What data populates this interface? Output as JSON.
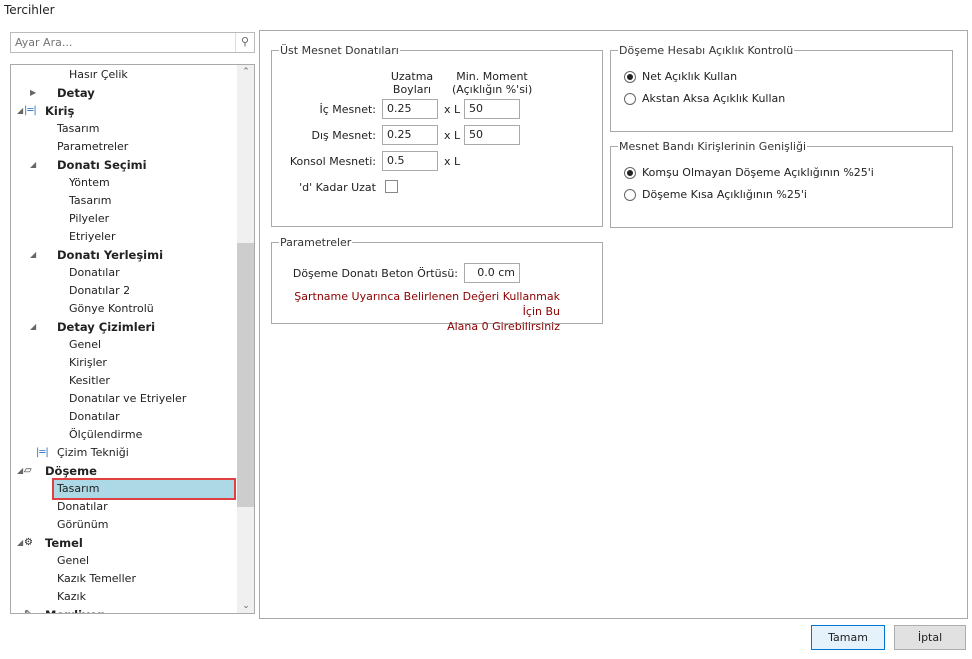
{
  "window": {
    "title": "Tercihler"
  },
  "search": {
    "placeholder": "Ayar Ara...",
    "icon": "search-icon"
  },
  "tree": [
    {
      "label": "Hasır Çelik",
      "x": 58,
      "bold": false
    },
    {
      "label": "Detay",
      "x": 46,
      "bold": true,
      "arrow": "collapsed"
    },
    {
      "label": "Kiriş",
      "x": 34,
      "bold": true,
      "arrow": "expanded",
      "icon": "beam-icon"
    },
    {
      "label": "Tasarım",
      "x": 46
    },
    {
      "label": "Parametreler",
      "x": 46
    },
    {
      "label": "Donatı Seçimi",
      "x": 46,
      "bold": true,
      "arrow": "expanded"
    },
    {
      "label": "Yöntem",
      "x": 58
    },
    {
      "label": "Tasarım",
      "x": 58
    },
    {
      "label": "Pilyeler",
      "x": 58
    },
    {
      "label": "Etriyeler",
      "x": 58
    },
    {
      "label": "Donatı Yerleşimi",
      "x": 46,
      "bold": true,
      "arrow": "expanded"
    },
    {
      "label": "Donatılar",
      "x": 58
    },
    {
      "label": "Donatılar 2",
      "x": 58
    },
    {
      "label": "Gönye Kontrolü",
      "x": 58
    },
    {
      "label": "Detay Çizimleri",
      "x": 46,
      "bold": true,
      "arrow": "expanded"
    },
    {
      "label": "Genel",
      "x": 58
    },
    {
      "label": "Kirişler",
      "x": 58
    },
    {
      "label": "Kesitler",
      "x": 58
    },
    {
      "label": "Donatılar ve Etriyeler",
      "x": 58
    },
    {
      "label": "Donatılar",
      "x": 58
    },
    {
      "label": "Ölçülendirme",
      "x": 58
    },
    {
      "label": "Çizim Tekniği",
      "x": 46,
      "icon": "beam-icon"
    },
    {
      "label": "Döşeme",
      "x": 34,
      "bold": true,
      "arrow": "expanded",
      "icon": "slab-icon"
    },
    {
      "label": "Tasarım",
      "x": 46,
      "selected": true
    },
    {
      "label": "Donatılar",
      "x": 46
    },
    {
      "label": "Görünüm",
      "x": 46
    },
    {
      "label": "Temel",
      "x": 34,
      "bold": true,
      "arrow": "expanded",
      "icon": "foundation-icon"
    },
    {
      "label": "Genel",
      "x": 46
    },
    {
      "label": "Kazık Temeller",
      "x": 46
    },
    {
      "label": "Kazık",
      "x": 46
    },
    {
      "label": "Merdiven",
      "x": 34,
      "bold": true,
      "icon": "stair-icon"
    }
  ],
  "ust_mesnet": {
    "legend": "Üst Mesnet Donatıları",
    "col1": "Uzatma Boyları",
    "col1a": "Uzatma",
    "col1b": "Boyları",
    "col2a": "Min. Moment",
    "col2b": "(Açıklığın %'si)",
    "ic_label": "İç Mesnet:",
    "ic_val": "0.25",
    "ic_mom": "50",
    "dis_label": "Dış Mesnet:",
    "dis_val": "0.25",
    "dis_mom": "50",
    "konsol_label": "Konsol Mesneti:",
    "konsol_val": "0.5",
    "xl": "x L",
    "d_label": "'d' Kadar Uzat",
    "d_checked": false
  },
  "parametreler": {
    "legend": "Parametreler",
    "ortu_label": "Döşeme Donatı Beton Örtüsü:",
    "ortu_val": "0.0 cm",
    "warn1": "Şartname Uyarınca Belirlenen Değeri Kullanmak İçin Bu",
    "warn2": "Alana 0 Girebilirsiniz",
    "warn_color": "#8b0000"
  },
  "aciklik": {
    "legend": "Döşeme Hesabı Açıklık Kontrolü",
    "opt1": "Net Açıklık Kullan",
    "opt2": "Akstan Aksa Açıklık Kullan",
    "selected": 1
  },
  "mesnet_bandi": {
    "legend": "Mesnet Bandı Kirişlerinin Genişliği",
    "opt1": "Komşu Olmayan Döşeme Açıklığının %25'i",
    "opt2": "Döşeme Kısa Açıklığının %25'i",
    "selected": 1
  },
  "buttons": {
    "ok": "Tamam",
    "cancel": "İptal"
  }
}
